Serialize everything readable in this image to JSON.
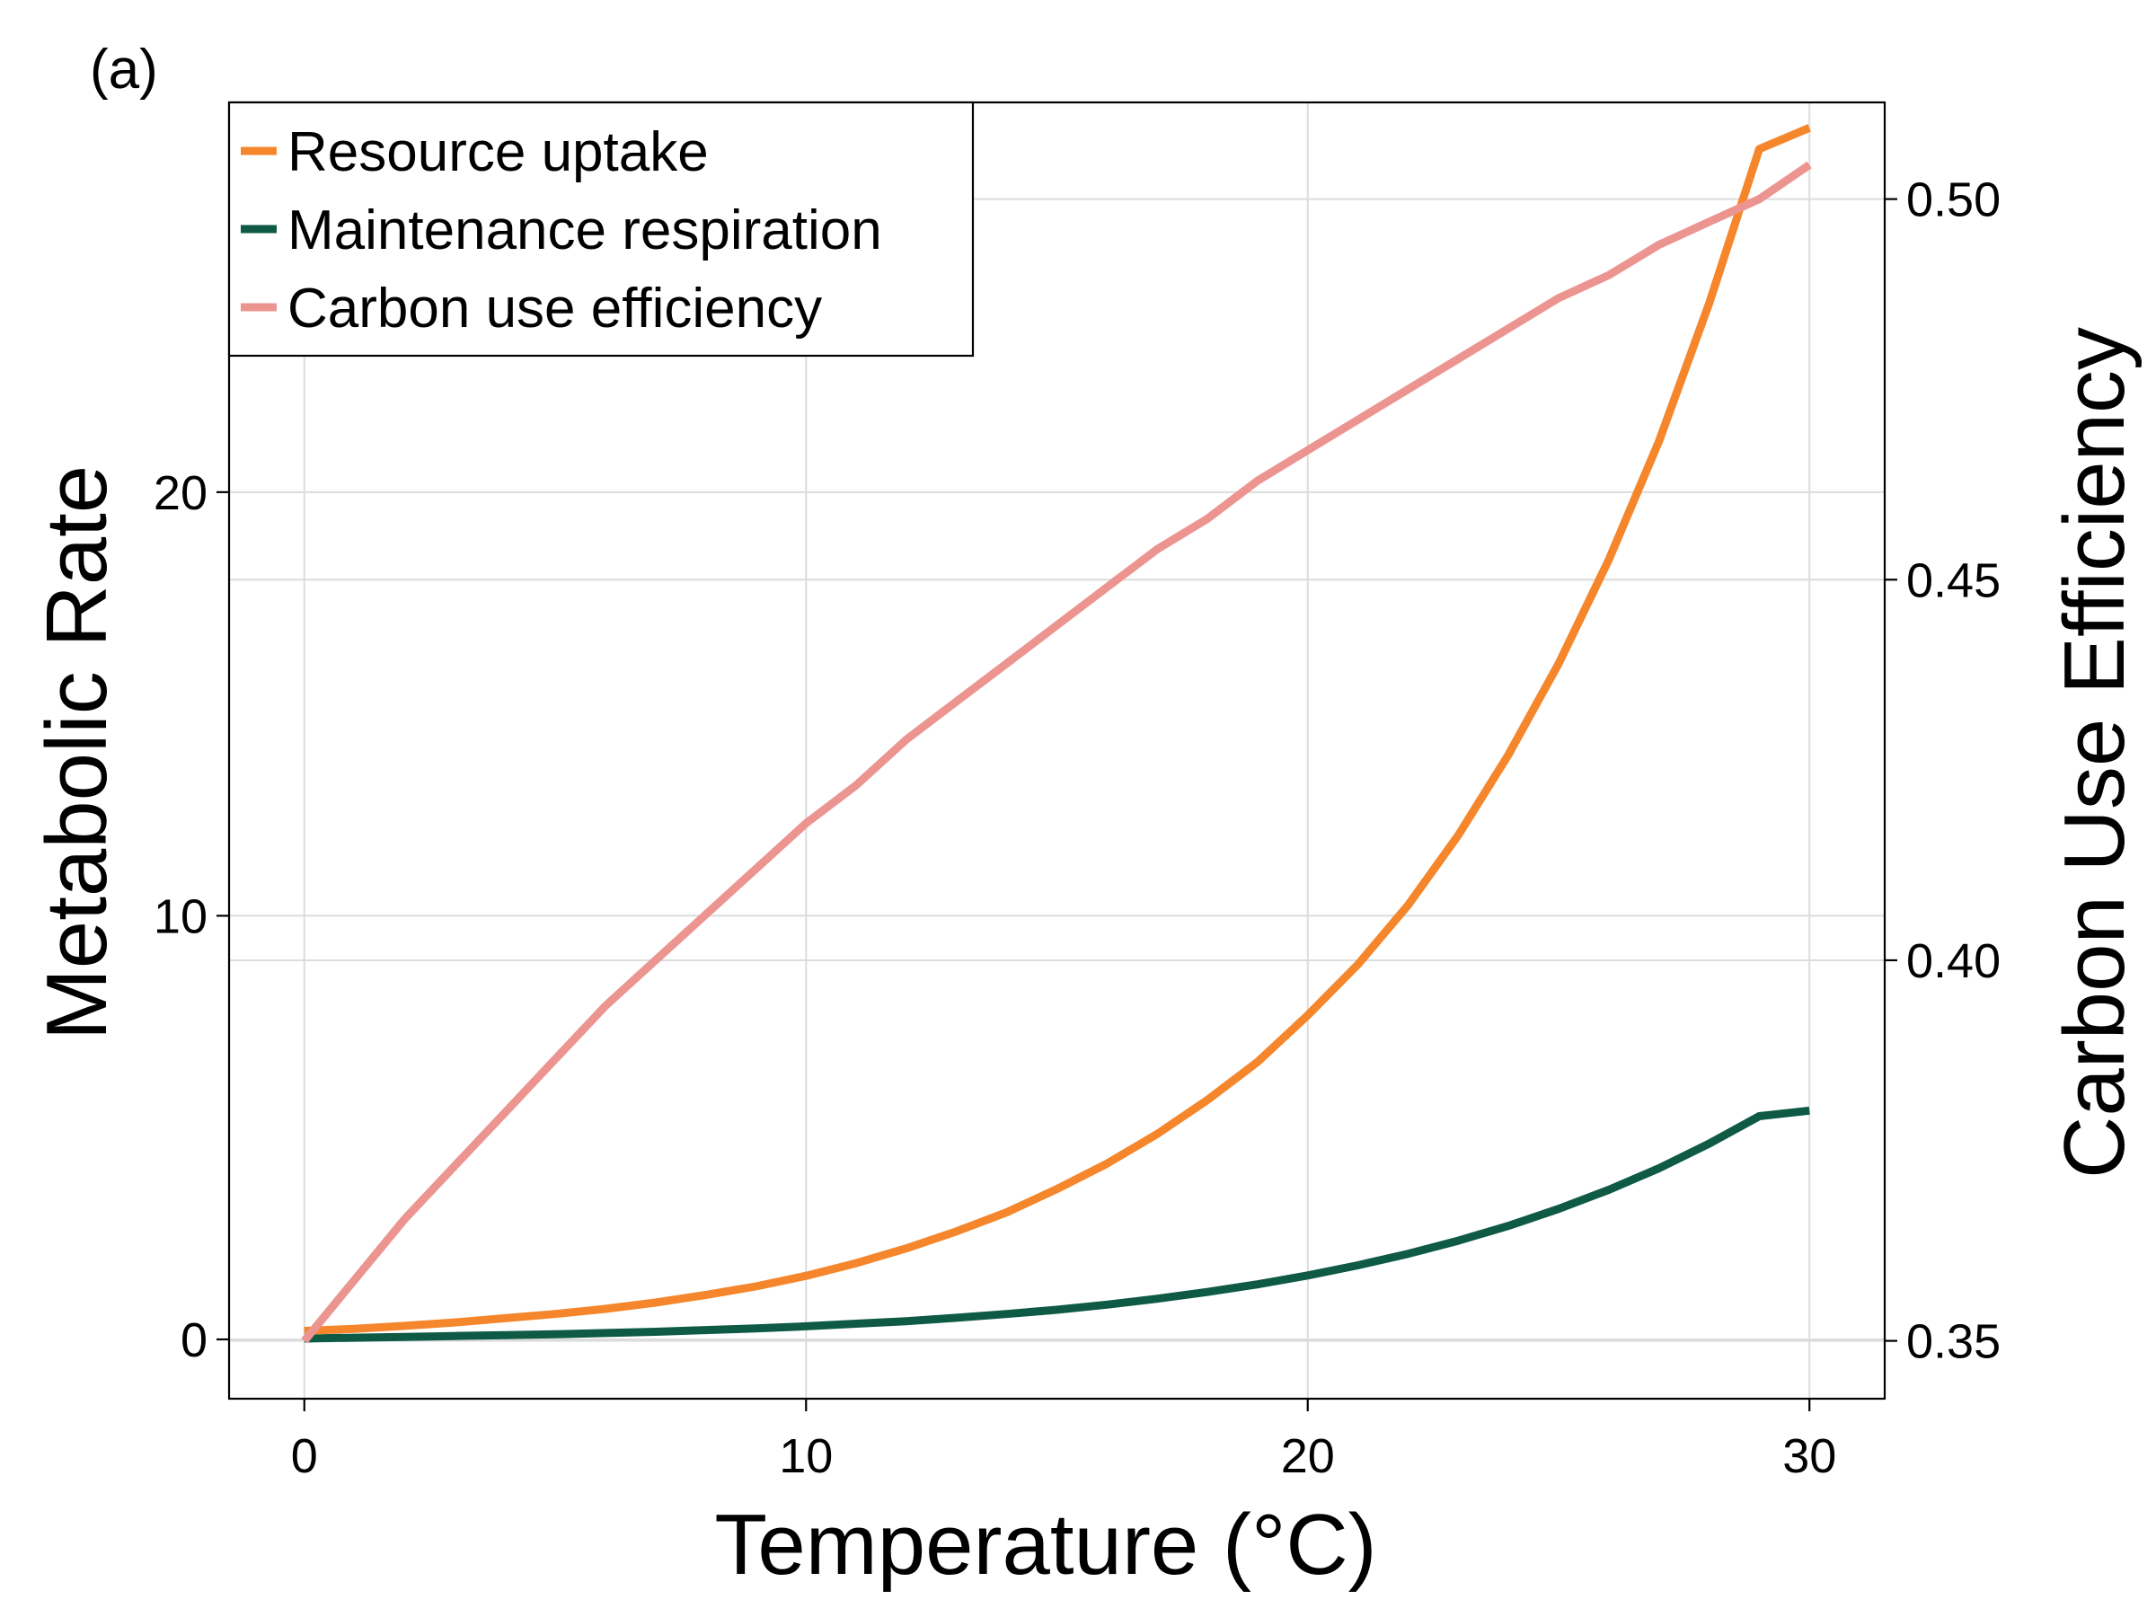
{
  "chart_data": {
    "type": "line",
    "panel_label": "(a)",
    "xlabel": "Temperature (°C)",
    "ylabel": "Metabolic Rate",
    "y2label": "Carbon Use Efficiency",
    "xlim": [
      -1.5,
      31.5
    ],
    "ylim": [
      -1.4,
      29.2
    ],
    "y2lim": [
      0.3424,
      0.5127
    ],
    "xticks": [
      0,
      10,
      20,
      30
    ],
    "yticks": [
      0,
      10,
      20
    ],
    "y2ticks": [
      0.35,
      0.4,
      0.45,
      0.5
    ],
    "y2tick_labels": [
      "0.35",
      "0.40",
      "0.45",
      "0.50"
    ],
    "grid": true,
    "legend_position": "top-left",
    "x": [
      0,
      1,
      2,
      3,
      4,
      5,
      6,
      7,
      8,
      9,
      10,
      11,
      12,
      13,
      14,
      15,
      16,
      17,
      18,
      19,
      20,
      21,
      22,
      23,
      24,
      25,
      26,
      27,
      28,
      29,
      30
    ],
    "series": [
      {
        "name": "Resource uptake",
        "axis": "left",
        "color": "#f5862b",
        "values": [
          0.2,
          0.25,
          0.32,
          0.4,
          0.5,
          0.6,
          0.72,
          0.87,
          1.05,
          1.25,
          1.5,
          1.8,
          2.15,
          2.55,
          3.0,
          3.55,
          4.15,
          4.85,
          5.65,
          6.55,
          7.65,
          8.85,
          10.25,
          11.9,
          13.8,
          15.95,
          18.4,
          21.2,
          24.45,
          28.1,
          28.6
        ],
        "values_note_removed": true
      },
      {
        "name": "Maintenance respiration",
        "axis": "left",
        "color": "#0e5a45",
        "values": [
          0.02,
          0.04,
          0.06,
          0.08,
          0.1,
          0.12,
          0.15,
          0.18,
          0.22,
          0.26,
          0.31,
          0.37,
          0.43,
          0.51,
          0.6,
          0.7,
          0.82,
          0.96,
          1.12,
          1.3,
          1.51,
          1.75,
          2.02,
          2.33,
          2.68,
          3.08,
          3.53,
          4.04,
          4.62,
          5.27,
          5.4
        ]
      },
      {
        "name": "Carbon use efficiency",
        "axis": "right",
        "color": "#ec9490",
        "values": [
          0.35,
          0.358,
          0.366,
          0.373,
          0.38,
          0.387,
          0.394,
          0.4,
          0.406,
          0.412,
          0.418,
          0.423,
          0.429,
          0.434,
          0.439,
          0.444,
          0.449,
          0.454,
          0.458,
          0.463,
          0.467,
          0.471,
          0.475,
          0.479,
          0.483,
          0.487,
          0.49,
          0.494,
          0.497,
          0.5,
          0.5045
        ]
      }
    ]
  }
}
